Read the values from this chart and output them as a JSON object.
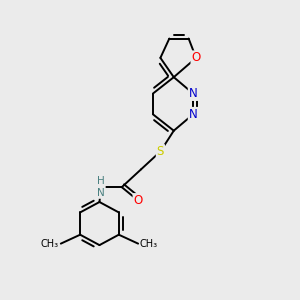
{
  "bg_color": "#ebebeb",
  "atom_colors": {
    "C": "#000000",
    "N": "#0000cc",
    "O": "#ff0000",
    "S": "#cccc00",
    "H": "#4a8080"
  },
  "bond_color": "#000000",
  "bond_width": 1.4,
  "font_size": 8.5,
  "figsize": [
    3.0,
    3.0
  ],
  "dpi": 100
}
